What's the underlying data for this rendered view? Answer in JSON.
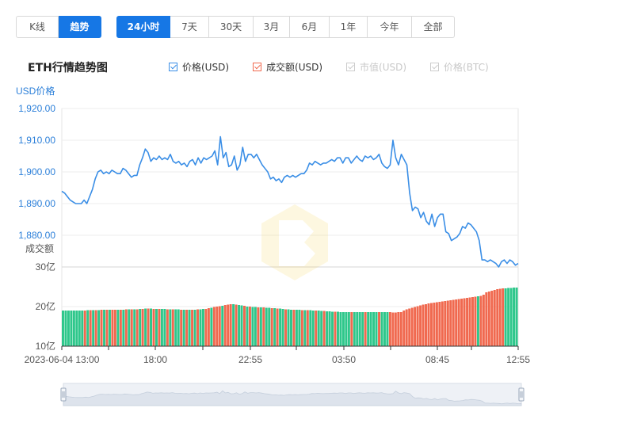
{
  "range_buttons_a": [
    {
      "label": "K线",
      "active": false
    },
    {
      "label": "趋势",
      "active": true
    }
  ],
  "range_buttons_b": [
    {
      "label": "24小时",
      "active": true
    },
    {
      "label": "7天",
      "active": false
    },
    {
      "label": "30天",
      "active": false
    },
    {
      "label": "3月",
      "active": false
    },
    {
      "label": "6月",
      "active": false
    },
    {
      "label": "1年",
      "active": false
    },
    {
      "label": "今年",
      "active": false
    },
    {
      "label": "全部",
      "active": false
    }
  ],
  "chart_title": "ETH行情趋势图",
  "legend": [
    {
      "label": "价格(USD)",
      "checked": true,
      "enabled": true,
      "color": "#3a8ee6"
    },
    {
      "label": "成交额(USD)",
      "checked": true,
      "enabled": true,
      "color": "#f0694f"
    },
    {
      "label": "市值(USD)",
      "checked": false,
      "enabled": false,
      "color": "#cccccc"
    },
    {
      "label": "价格(BTC)",
      "checked": false,
      "enabled": false,
      "color": "#cccccc"
    }
  ],
  "colors": {
    "price_line": "#3a8ee6",
    "volume_up": "#2ec78b",
    "volume_down": "#f0694f",
    "axis_label_blue": "#2b7fd9",
    "navigator_fill": "#dde3ec"
  },
  "chart_data": {
    "type": "line",
    "x_tick_labels": [
      "2023-06-04 13:00",
      "18:00",
      "22:55",
      "03:50",
      "08:45",
      "12:55"
    ],
    "price": {
      "axis_label": "USD价格",
      "ylim": [
        1875,
        1920
      ],
      "y_ticks": [
        "1,920.00",
        "1,910.00",
        "1,900.00",
        "1,890.00",
        "1,880.00"
      ],
      "values": [
        1896.5,
        1896,
        1895,
        1894,
        1893.5,
        1893,
        1893,
        1893,
        1894,
        1893,
        1895,
        1897,
        1900,
        1902,
        1902.5,
        1901.5,
        1902,
        1901.5,
        1902.5,
        1902,
        1901.5,
        1901.5,
        1903,
        1902.5,
        1901.5,
        1900.5,
        1901,
        1901,
        1904,
        1906,
        1908.5,
        1907.5,
        1905,
        1906,
        1905.5,
        1906.5,
        1905.5,
        1906,
        1905.5,
        1907,
        1905,
        1904.5,
        1905,
        1904,
        1904.5,
        1903.5,
        1905,
        1905.5,
        1904,
        1906,
        1904.5,
        1906,
        1905.5,
        1906,
        1906.5,
        1908,
        1904,
        1912,
        1906,
        1907.5,
        1903.5,
        1904,
        1906.5,
        1902.5,
        1904,
        1909,
        1905,
        1907,
        1907,
        1906,
        1907,
        1905.5,
        1904,
        1903,
        1902,
        1900,
        1900.5,
        1899.5,
        1900,
        1899,
        1900.5,
        1901,
        1900.5,
        1901,
        1900.5,
        1901,
        1901.5,
        1901.5,
        1902.5,
        1904.5,
        1904,
        1905,
        1904.5,
        1904,
        1904.5,
        1904.5,
        1905,
        1905.5,
        1905,
        1906,
        1906,
        1904.5,
        1906,
        1906,
        1904.5,
        1905.5,
        1906.5,
        1905.5,
        1905,
        1906.5,
        1906,
        1906.5,
        1905.5,
        1906,
        1907,
        1904.5,
        1903.5,
        1903,
        1904,
        1911,
        1906,
        1904,
        1907,
        1905.5,
        1904,
        1896,
        1891,
        1892,
        1891.5,
        1889,
        1890.5,
        1888,
        1887,
        1890,
        1886.5,
        1889,
        1890,
        1890,
        1885,
        1884.5,
        1882.5,
        1883,
        1883.5,
        1884.5,
        1886.5,
        1886,
        1887.5,
        1887,
        1886,
        1885,
        1882.5,
        1877,
        1877,
        1876.5,
        1877,
        1876.5,
        1876,
        1875,
        1876.5,
        1877,
        1876,
        1877,
        1876.5,
        1875.5,
        1876
      ]
    },
    "volume": {
      "axis_label": "成交额",
      "ylim": [
        10,
        30
      ],
      "y_ticks": [
        "30亿",
        "20亿",
        "10亿"
      ],
      "values": [
        19,
        19,
        19,
        19,
        19,
        19,
        19,
        19,
        19,
        19.1,
        19.1,
        19.1,
        19.1,
        19.1,
        19.2,
        19.2,
        19.2,
        19.2,
        19.2,
        19.2,
        19.2,
        19.2,
        19.2,
        19.3,
        19.3,
        19.3,
        19.3,
        19.3,
        19.4,
        19.4,
        19.5,
        19.5,
        19.5,
        19.4,
        19.4,
        19.4,
        19.4,
        19.4,
        19.3,
        19.3,
        19.3,
        19.3,
        19.3,
        19.2,
        19.2,
        19.2,
        19.2,
        19.2,
        19.2,
        19.3,
        19.3,
        19.4,
        19.4,
        19.6,
        19.7,
        19.9,
        20,
        20.1,
        20.2,
        20.4,
        20.5,
        20.6,
        20.6,
        20.5,
        20.4,
        20.3,
        20.2,
        20,
        20,
        19.9,
        19.9,
        19.8,
        19.8,
        19.8,
        19.7,
        19.7,
        19.6,
        19.6,
        19.5,
        19.5,
        19.4,
        19.3,
        19.3,
        19.2,
        19.2,
        19.2,
        19.2,
        19.1,
        19.1,
        19.1,
        19.1,
        19,
        19,
        19,
        18.9,
        18.9,
        18.8,
        18.8,
        18.7,
        18.7,
        18.7,
        18.6,
        18.6,
        18.6,
        18.6,
        18.6,
        18.6,
        18.6,
        18.6,
        18.6,
        18.6,
        18.6,
        18.6,
        18.6,
        18.6,
        18.6,
        18.6,
        18.6,
        18.6,
        18.6,
        18.5,
        18.5,
        18.6,
        18.6,
        19,
        19.3,
        19.5,
        19.7,
        19.9,
        20.1,
        20.3,
        20.5,
        20.6,
        20.8,
        20.9,
        21,
        21.1,
        21.2,
        21.3,
        21.4,
        21.5,
        21.6,
        21.7,
        21.8,
        21.9,
        22,
        22.1,
        22.2,
        22.3,
        22.4,
        22.5,
        22.6,
        22.7,
        23,
        23.6,
        23.8,
        24,
        24.2,
        24.4,
        24.5,
        24.6,
        24.6,
        24.7,
        24.7,
        24.8,
        24.8
      ],
      "down": [
        0,
        0,
        0,
        0,
        0,
        0,
        0,
        0,
        1,
        0,
        1,
        0,
        1,
        0,
        1,
        0,
        1,
        0,
        1,
        1,
        0,
        1,
        0,
        1,
        0,
        1,
        0,
        1,
        0,
        1,
        0,
        1,
        0,
        1,
        0,
        1,
        0,
        0,
        1,
        0,
        1,
        0,
        0,
        1,
        0,
        1,
        0,
        1,
        0,
        1,
        0,
        0,
        1,
        1,
        0,
        1,
        1,
        1,
        0,
        1,
        1,
        1,
        0,
        1,
        0,
        0,
        1,
        0,
        1,
        0,
        0,
        1,
        0,
        1,
        0,
        0,
        1,
        0,
        1,
        0,
        0,
        1,
        0,
        0,
        1,
        0,
        0,
        1,
        0,
        1,
        0,
        0,
        1,
        0,
        0,
        1,
        0,
        0,
        0,
        1,
        0,
        0,
        0,
        0,
        0,
        1,
        0,
        0,
        0,
        0,
        1,
        0,
        0,
        0,
        0,
        1,
        0,
        0,
        0,
        1,
        1,
        1,
        1,
        1,
        1,
        1,
        1,
        1,
        1,
        1,
        1,
        1,
        1,
        1,
        1,
        1,
        1,
        1,
        1,
        1,
        1,
        1,
        1,
        1,
        1,
        1,
        1,
        1,
        1,
        1,
        1,
        0,
        1,
        1,
        1,
        1,
        1,
        1,
        1,
        1,
        1
      ]
    }
  }
}
